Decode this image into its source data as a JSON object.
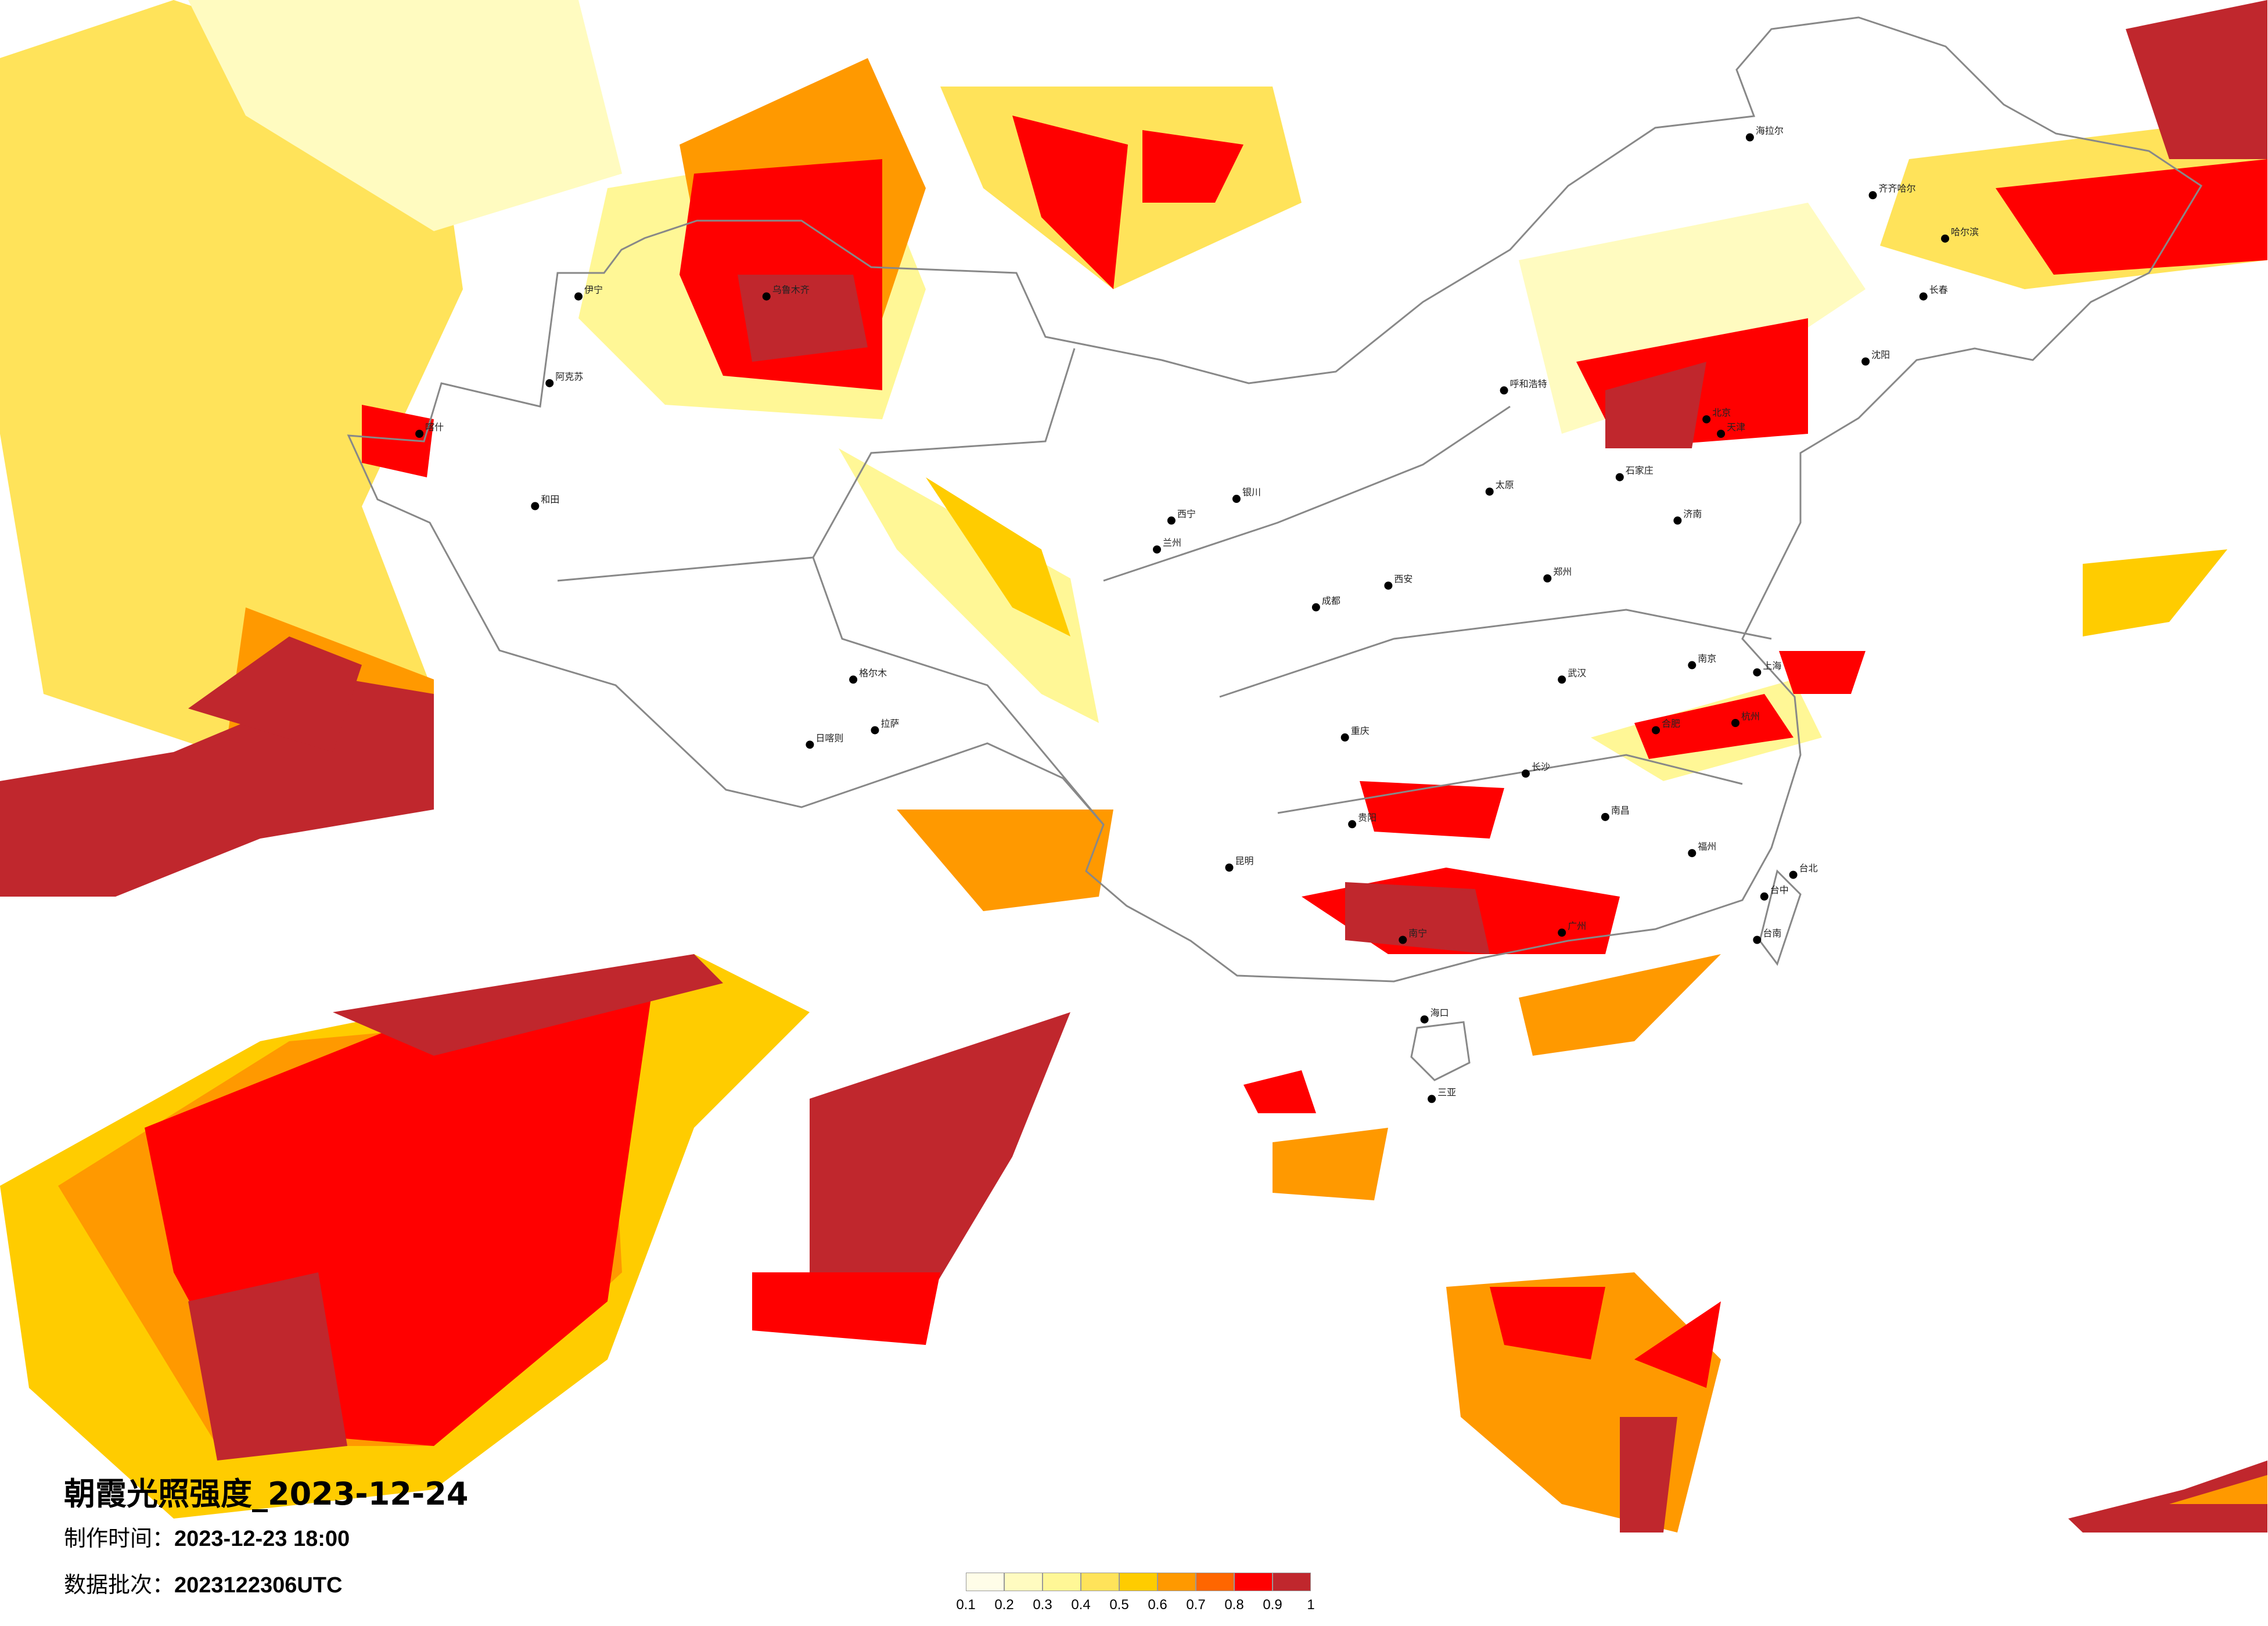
{
  "title": "朝霞光照强度_2023-12-24",
  "production_time_label": "制作时间：",
  "production_time": "2023-12-23 18:00",
  "data_batch_label": "数据批次：",
  "data_batch": "2023122306UTC",
  "legend": {
    "colors": [
      "#fffde8",
      "#fffbc0",
      "#fff796",
      "#ffe35a",
      "#ffcc00",
      "#ff9900",
      "#ff6600",
      "#ff0000",
      "#c0272d"
    ],
    "ticks": [
      "0.1",
      "0.2",
      "0.3",
      "0.4",
      "0.5",
      "0.6",
      "0.7",
      "0.8",
      "0.9",
      "1"
    ]
  },
  "border_color": "#888888",
  "city_marker_color": "#000000",
  "cities": [
    "海拉尔",
    "齐齐哈尔",
    "哈尔滨",
    "长春",
    "沈阳",
    "北京",
    "天津",
    "呼和浩特",
    "石家庄",
    "太原",
    "济南",
    "郑州",
    "西安",
    "银川",
    "兰州",
    "西宁",
    "乌鲁木齐",
    "伊宁",
    "阿克苏",
    "喀什",
    "和田",
    "格尔木",
    "拉萨",
    "日喀则",
    "成都",
    "重庆",
    "贵阳",
    "昆明",
    "南宁",
    "广州",
    "长沙",
    "武汉",
    "南京",
    "上海",
    "杭州",
    "福州",
    "南昌",
    "合肥",
    "台北",
    "台中",
    "台南",
    "海口",
    "三亚"
  ]
}
